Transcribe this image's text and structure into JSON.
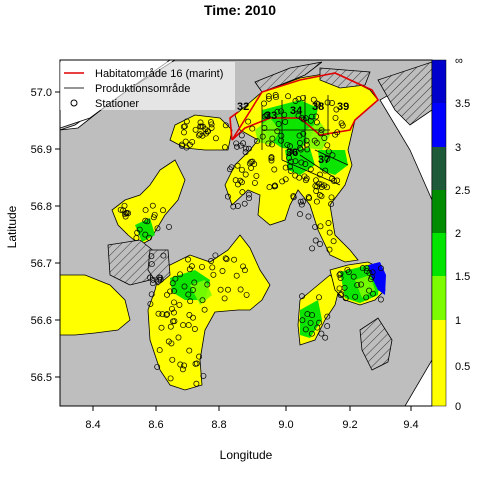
{
  "title": "Time: 2010",
  "xlabel": "Longitude",
  "ylabel": "Latitude",
  "map": {
    "x_ticks": [
      "8.4",
      "8.6",
      "8.8",
      "9.0",
      "9.2",
      "9.4"
    ],
    "y_ticks": [
      "56.5",
      "56.6",
      "56.7",
      "56.8",
      "56.9",
      "57.0"
    ],
    "xlim": [
      8.3,
      9.48
    ],
    "ylim": [
      56.43,
      57.11
    ],
    "legend": {
      "position": "top-left",
      "items": [
        {
          "label": "Habitatområde 16 (marint)",
          "symbol": "red-line",
          "color": "#e00000"
        },
        {
          "label": "Produktionsområde",
          "symbol": "gray-line",
          "color": "#555555"
        },
        {
          "label": "Stationer",
          "symbol": "circle",
          "color": "#000000"
        }
      ]
    },
    "area_labels": [
      "32",
      "33",
      "34",
      "38",
      "39",
      "36",
      "37"
    ],
    "colorbar": {
      "ticks": [
        "0",
        "0.5",
        "1",
        "1.5",
        "2",
        "2.5",
        "3",
        "3.5",
        "∞"
      ],
      "colors": [
        "#ffff00",
        "#ffff00",
        "#7cfc00",
        "#00e400",
        "#008b00",
        "#1e5a3a",
        "#0000ff",
        "#0000cd"
      ]
    },
    "colors": {
      "land": "#bebebe",
      "water": "#ffff00",
      "habitat": "#e00000"
    }
  }
}
